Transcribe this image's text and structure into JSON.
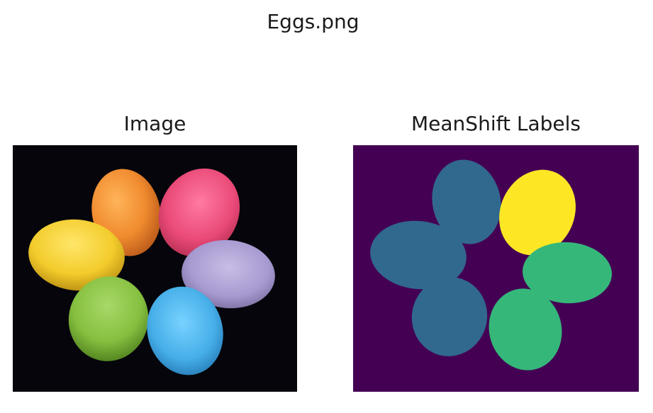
{
  "figure": {
    "suptitle": "Eggs.png"
  },
  "left_panel": {
    "title": "Image",
    "background": "#05050b",
    "eggs": [
      {
        "name": "orange",
        "color": "#f08a2e"
      },
      {
        "name": "pink",
        "color": "#ea4a78"
      },
      {
        "name": "yellow",
        "color": "#f3cc2c"
      },
      {
        "name": "lavender",
        "color": "#a79ad0"
      },
      {
        "name": "green",
        "color": "#86c040"
      },
      {
        "name": "blue",
        "color": "#46aee8"
      }
    ]
  },
  "right_panel": {
    "title": "MeanShift Labels",
    "background": "#440154",
    "label_colors": {
      "label_0": "#440154",
      "label_1": "#31688e",
      "label_2": "#35b779",
      "label_3": "#fde725"
    }
  }
}
